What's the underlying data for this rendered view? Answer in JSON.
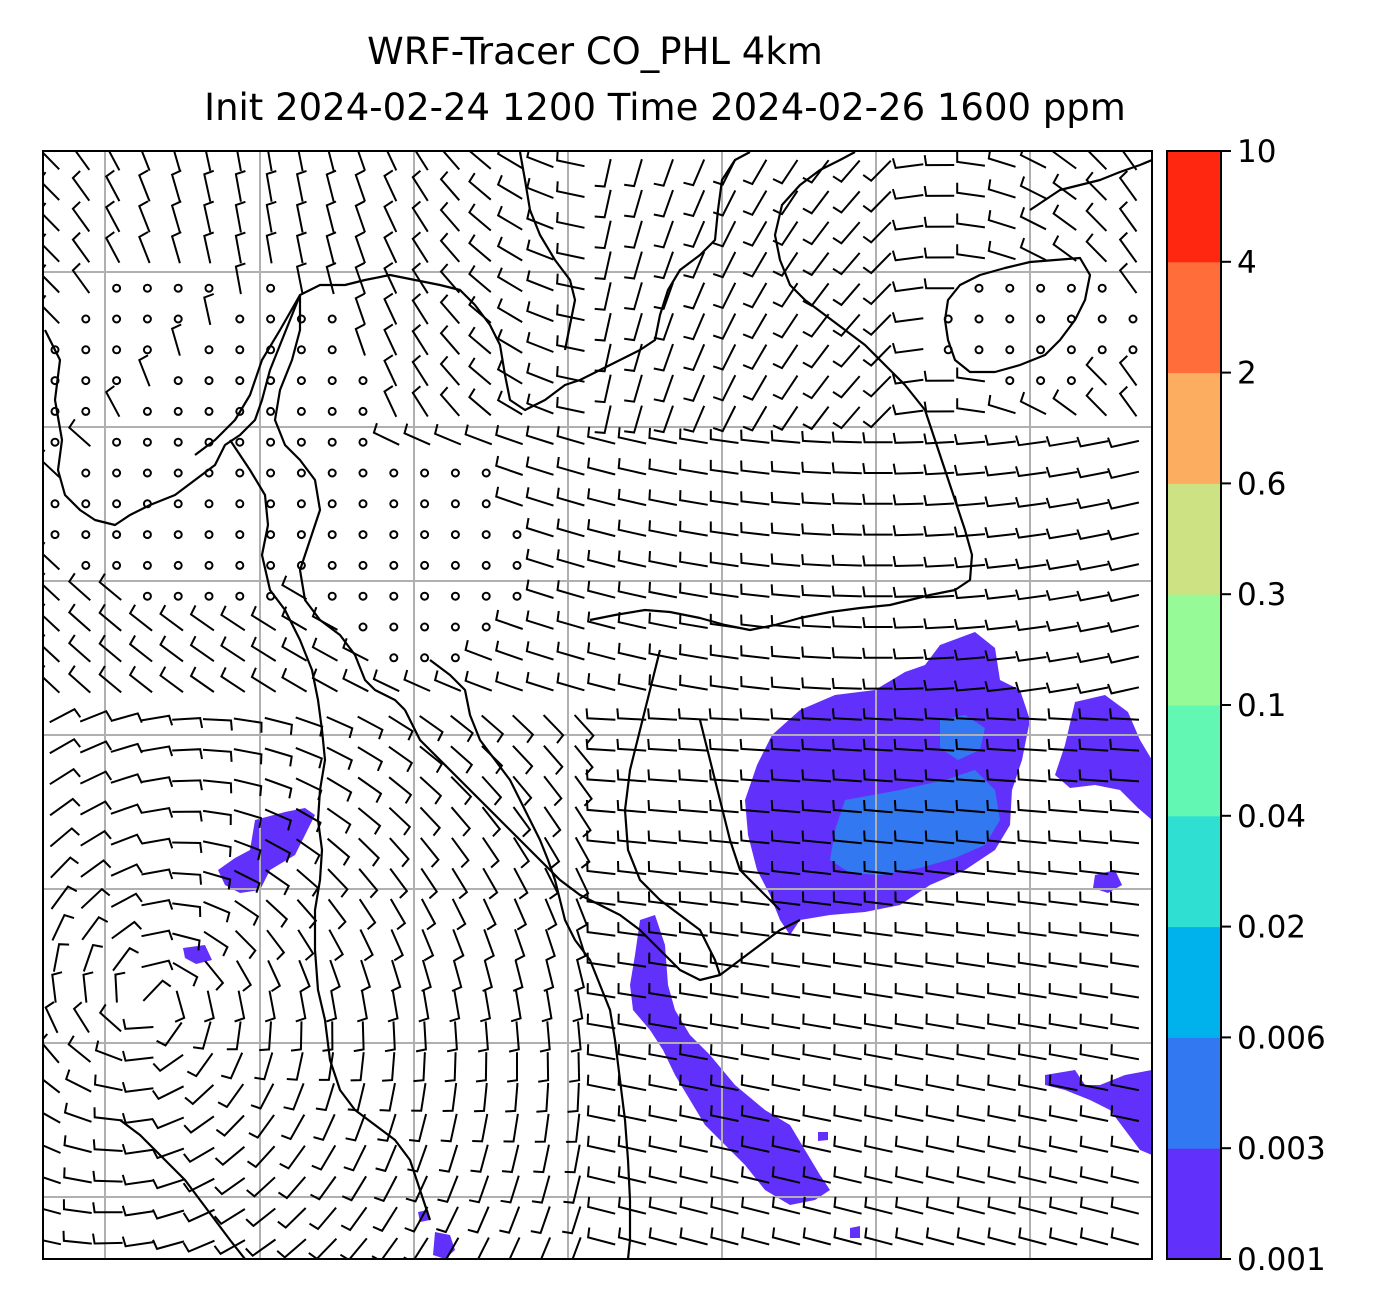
{
  "header": {
    "title_line1": "WRF-Tracer CO_PHL 4km",
    "title_line2": "Init 2024-02-24 1200 Time 2024-02-26 1600 ppm"
  },
  "colorbar": {
    "levels": [
      "0.001",
      "0.003",
      "0.006",
      "0.02",
      "0.04",
      "0.1",
      "0.3",
      "0.6",
      "2",
      "4",
      "10"
    ],
    "colors": [
      "#6230fb",
      "#3278f0",
      "#00b2ec",
      "#2fe0d2",
      "#62f8b3",
      "#96fa97",
      "#cde283",
      "#fcad60",
      "#ff6e3a",
      "#ff2710"
    ]
  },
  "map": {
    "gridline_color": "#b0b0b0",
    "coastline_color": "#000000",
    "barb_color": "#000000",
    "tracer_min_color": "#6230fb",
    "tracer_second_color": "#3278f0"
  }
}
